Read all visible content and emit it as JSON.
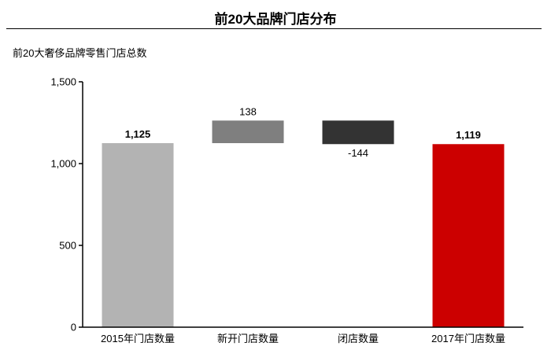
{
  "chart_data": {
    "type": "bar",
    "subtype": "waterfall",
    "title": "前20大品牌门店分布",
    "subtitle": "前20大奢侈品牌零售门店总数",
    "categories": [
      "2015年门店数量",
      "新开门店数量",
      "闭店数量",
      "2017年门店数量"
    ],
    "values": [
      1125,
      138,
      -144,
      1119
    ],
    "value_labels": [
      "1,125",
      "138",
      "-144",
      "1,119"
    ],
    "bar_kinds": [
      "total",
      "delta",
      "delta",
      "total"
    ],
    "bar_colors": [
      "#b3b3b3",
      "#7f7f7f",
      "#333333",
      "#cc0000"
    ],
    "bold_labels": [
      true,
      false,
      false,
      true
    ],
    "ylim": [
      0,
      1500
    ],
    "yticks": [
      0,
      500,
      1000,
      1500
    ],
    "ytick_labels": [
      "0",
      "500",
      "1,000",
      "1,500"
    ],
    "grid": false,
    "legend": "none"
  }
}
